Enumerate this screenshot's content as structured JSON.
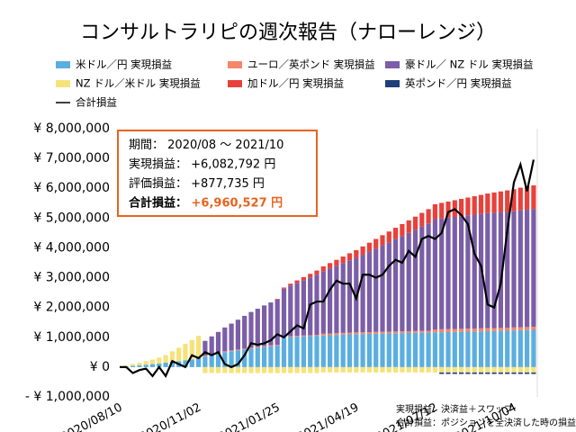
{
  "chart_data": {
    "type": "stacked_bar",
    "title": "コンサルトラリピの週次報告（ナローレンジ）",
    "categories": [
      "2020/08/10",
      null,
      null,
      null,
      null,
      null,
      null,
      null,
      null,
      null,
      null,
      null,
      "2020/11/02",
      null,
      null,
      null,
      null,
      null,
      null,
      null,
      null,
      null,
      null,
      null,
      "2021/01/25",
      null,
      null,
      null,
      null,
      null,
      null,
      null,
      null,
      null,
      null,
      null,
      "2021/04/19",
      null,
      null,
      null,
      null,
      null,
      null,
      null,
      null,
      null,
      null,
      null,
      "2021/07/12",
      null,
      null,
      null,
      null,
      null,
      null,
      null,
      null,
      null,
      null,
      null,
      "2021/10/04",
      null,
      null,
      null
    ],
    "series": [
      {
        "name": "米ドル／円 実現損益",
        "color": "#5aaee0",
        "values": [
          0,
          20000,
          40000,
          60000,
          80000,
          100000,
          120000,
          150000,
          180000,
          200000,
          230000,
          260000,
          300000,
          350000,
          400000,
          450000,
          500000,
          530000,
          560000,
          590000,
          620000,
          650000,
          680000,
          700000,
          720000,
          1000000,
          1010000,
          1020000,
          1030000,
          1040000,
          1050000,
          1060000,
          1070000,
          1080000,
          1090000,
          1100000,
          1105000,
          1110000,
          1115000,
          1120000,
          1125000,
          1130000,
          1135000,
          1140000,
          1145000,
          1150000,
          1155000,
          1160000,
          1165000,
          1170000,
          1175000,
          1180000,
          1185000,
          1190000,
          1195000,
          1200000,
          1205000,
          1210000,
          1215000,
          1220000,
          1230000,
          1240000,
          1245000,
          1250000
        ]
      },
      {
        "name": "ユーロ／英ポンド 実現損益",
        "color": "#f4866a",
        "values": [
          0,
          0,
          0,
          0,
          0,
          0,
          0,
          0,
          0,
          0,
          0,
          0,
          0,
          30000,
          30000,
          30000,
          30000,
          30000,
          30000,
          30000,
          30000,
          30000,
          30000,
          30000,
          30000,
          30000,
          30000,
          30000,
          30000,
          30000,
          30000,
          60000,
          60000,
          60000,
          60000,
          60000,
          60000,
          60000,
          60000,
          60000,
          60000,
          60000,
          60000,
          60000,
          60000,
          60000,
          60000,
          60000,
          100000,
          100000,
          100000,
          100000,
          100000,
          100000,
          100000,
          100000,
          100000,
          100000,
          100000,
          100000,
          100000,
          100000,
          100000,
          100000
        ]
      },
      {
        "name": "豪ドル／ NZ ドル 実現損益",
        "color": "#7b5ea7",
        "values": [
          0,
          0,
          0,
          0,
          0,
          0,
          0,
          0,
          0,
          0,
          0,
          0,
          0,
          500000,
          600000,
          700000,
          800000,
          900000,
          1000000,
          1100000,
          1200000,
          1280000,
          1360000,
          1440000,
          1520000,
          1600000,
          1700000,
          1780000,
          1860000,
          1940000,
          2020000,
          2100000,
          2180000,
          2260000,
          2340000,
          2420000,
          2500000,
          2600000,
          2700000,
          2800000,
          2900000,
          3000000,
          3100000,
          3200000,
          3300000,
          3400000,
          3500000,
          3600000,
          3700000,
          3720000,
          3740000,
          3760000,
          3780000,
          3800000,
          3820000,
          3840000,
          3860000,
          3870000,
          3880000,
          3890000,
          3900000,
          3920000,
          3940000,
          3950000
        ]
      },
      {
        "name": "NZ ドル／米ドル 実現損益",
        "color": "#f6e27a",
        "values": [
          0,
          30000,
          60000,
          90000,
          120000,
          150000,
          200000,
          250000,
          350000,
          450000,
          550000,
          650000,
          750000,
          -200000,
          -200000,
          -200000,
          -200000,
          -200000,
          -200000,
          -200000,
          -200000,
          -200000,
          -200000,
          -200000,
          -200000,
          -200000,
          -200000,
          -200000,
          -200000,
          -200000,
          -200000,
          -180000,
          -180000,
          -180000,
          -180000,
          -180000,
          -180000,
          -180000,
          -180000,
          -180000,
          -180000,
          -180000,
          -180000,
          -180000,
          -180000,
          -180000,
          -180000,
          -180000,
          -180000,
          -180000,
          -180000,
          -180000,
          -180000,
          -180000,
          -180000,
          -180000,
          -180000,
          -180000,
          -180000,
          -180000,
          -180000,
          -180000,
          -180000,
          -180000
        ]
      },
      {
        "name": "加ドル／円 実現損益",
        "color": "#e8413c",
        "values": [
          0,
          0,
          0,
          0,
          0,
          0,
          0,
          0,
          0,
          0,
          0,
          0,
          0,
          0,
          0,
          0,
          0,
          0,
          0,
          0,
          0,
          0,
          0,
          0,
          20000,
          40000,
          60000,
          80000,
          100000,
          120000,
          140000,
          160000,
          180000,
          200000,
          220000,
          240000,
          260000,
          280000,
          300000,
          320000,
          340000,
          360000,
          380000,
          400000,
          420000,
          440000,
          460000,
          480000,
          500000,
          520000,
          540000,
          560000,
          580000,
          600000,
          620000,
          640000,
          660000,
          680000,
          700000,
          720000,
          740000,
          760000,
          780000,
          800000
        ]
      },
      {
        "name": "英ポンド／円 実現損益",
        "color": "#1f3f7a",
        "values": [
          0,
          0,
          0,
          0,
          0,
          0,
          0,
          0,
          0,
          0,
          0,
          0,
          0,
          0,
          0,
          0,
          0,
          0,
          0,
          0,
          0,
          0,
          0,
          0,
          0,
          0,
          0,
          0,
          0,
          0,
          0,
          0,
          0,
          0,
          0,
          0,
          0,
          0,
          0,
          0,
          0,
          0,
          0,
          0,
          0,
          0,
          0,
          0,
          0,
          -50000,
          -50000,
          -50000,
          -50000,
          -50000,
          -50000,
          -50000,
          -50000,
          -50000,
          -50000,
          -50000,
          -50000,
          -50000,
          -50000,
          -50000
        ]
      },
      {
        "name": "合計損益",
        "type": "line",
        "color": "#000000",
        "values": [
          0,
          0,
          -200000,
          -100000,
          -50000,
          -300000,
          0,
          -300000,
          200000,
          100000,
          0,
          400000,
          300000,
          500000,
          400000,
          500000,
          100000,
          0,
          100000,
          400000,
          800000,
          750000,
          800000,
          900000,
          1100000,
          1000000,
          1200000,
          1400000,
          1300000,
          2100000,
          2200000,
          2200000,
          2600000,
          2900000,
          2800000,
          2800000,
          2300000,
          3100000,
          3100000,
          3000000,
          3100000,
          3400000,
          3600000,
          3500000,
          3900000,
          3700000,
          4300000,
          4400000,
          4300000,
          4500000,
          5200000,
          5300000,
          5100000,
          4800000,
          3800000,
          3400000,
          2100000,
          2000000,
          2800000,
          4600000,
          6200000,
          6800000,
          5900000,
          6960527
        ]
      }
    ],
    "ylim": [
      -1000000,
      8000000
    ],
    "yticks": [
      {
        "value": -1000000,
        "label": "- ¥ 1,000,000"
      },
      {
        "value": 0,
        "label": "¥ 0"
      },
      {
        "value": 1000000,
        "label": "¥ 1,000,000"
      },
      {
        "value": 2000000,
        "label": "¥ 2,000,000"
      },
      {
        "value": 3000000,
        "label": "¥ 3,000,000"
      },
      {
        "value": 4000000,
        "label": "¥ 4,000,000"
      },
      {
        "value": 5000000,
        "label": "¥ 5,000,000"
      },
      {
        "value": 6000000,
        "label": "¥ 6,000,000"
      },
      {
        "value": 7000000,
        "label": "¥ 7,000,000"
      },
      {
        "value": 8000000,
        "label": "¥ 8,000,000"
      }
    ],
    "grid": false,
    "info_box": [
      {
        "key": "期間：",
        "value": " 2020/08 ～ 2021/10"
      },
      {
        "key": "実現損益：",
        "value": " +6,082,792 円"
      },
      {
        "key": "評価損益：",
        "value": " +877,735 円"
      },
      {
        "key": "合計損益：",
        "value": " +6,960,527 円"
      }
    ],
    "notes": [
      "実現損益：決済益＋スワップ",
      "合計損益：ポジションを全決済した時の損益"
    ]
  }
}
